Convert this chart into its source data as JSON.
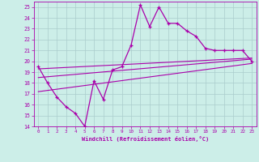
{
  "xlabel": "Windchill (Refroidissement éolien,°C)",
  "bg_color": "#cceee8",
  "grid_color": "#aacccc",
  "line_color": "#aa00aa",
  "xlim": [
    -0.5,
    23.5
  ],
  "ylim": [
    14,
    25.5
  ],
  "xticks": [
    0,
    1,
    2,
    3,
    4,
    5,
    6,
    7,
    8,
    9,
    10,
    11,
    12,
    13,
    14,
    15,
    16,
    17,
    18,
    19,
    20,
    21,
    22,
    23
  ],
  "yticks": [
    14,
    15,
    16,
    17,
    18,
    19,
    20,
    21,
    22,
    23,
    24,
    25
  ],
  "line1_x": [
    0,
    1,
    2,
    3,
    4,
    5,
    6,
    7,
    8,
    9,
    10,
    11,
    12,
    13,
    14,
    15,
    16,
    17,
    18,
    19,
    20,
    21,
    22,
    23
  ],
  "line1_y": [
    19.5,
    18.0,
    16.7,
    15.8,
    15.2,
    14.0,
    18.2,
    16.5,
    19.2,
    19.5,
    21.5,
    25.2,
    23.2,
    25.0,
    23.5,
    23.5,
    22.8,
    22.3,
    21.2,
    21.0,
    21.0,
    21.0,
    21.0,
    20.0
  ],
  "line2_x": [
    0,
    23
  ],
  "line2_y": [
    18.5,
    20.2
  ],
  "line3_x": [
    0,
    23
  ],
  "line3_y": [
    19.3,
    20.3
  ],
  "line4_x": [
    0,
    23
  ],
  "line4_y": [
    17.2,
    19.8
  ]
}
